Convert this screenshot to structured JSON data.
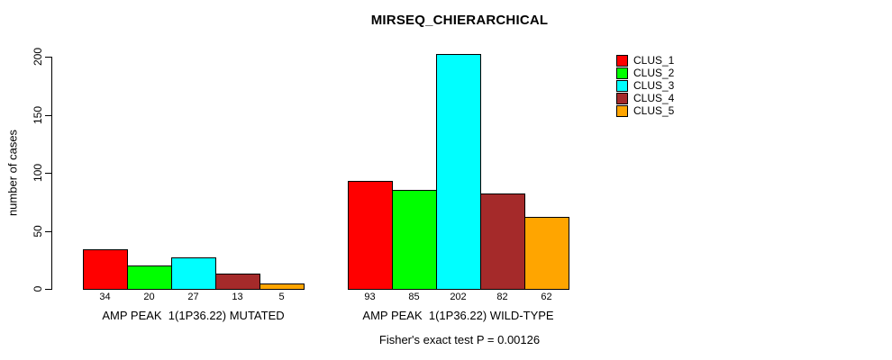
{
  "header": {
    "title": "MIRSEQ_CHIERARCHICAL"
  },
  "chart_data": {
    "type": "bar",
    "title": "MIRSEQ_CHIERARCHICAL",
    "xlabel": "",
    "ylabel": "number of cases",
    "ylim": [
      0,
      210
    ],
    "yticks": [
      0,
      50,
      100,
      150,
      200
    ],
    "grid": false,
    "legend_position": "top-right",
    "bar_borders": "#000000",
    "categories": [
      "AMP PEAK  1(1P36.22) MUTATED",
      "AMP PEAK  1(1P36.22) WILD-TYPE"
    ],
    "series": [
      {
        "name": "CLUS_1",
        "color": "#FF0000",
        "values": [
          34,
          93
        ]
      },
      {
        "name": "CLUS_2",
        "color": "#00FF00",
        "values": [
          20,
          85
        ]
      },
      {
        "name": "CLUS_3",
        "color": "#00FFFF",
        "values": [
          27,
          202
        ]
      },
      {
        "name": "CLUS_4",
        "color": "#A52A2A",
        "values": [
          13,
          82
        ]
      },
      {
        "name": "CLUS_5",
        "color": "#FFA500",
        "values": [
          5,
          62
        ]
      }
    ],
    "bar_value_labels": [
      [
        34,
        20,
        27,
        13,
        5
      ],
      [
        93,
        85,
        202,
        82,
        62
      ]
    ],
    "annotation": "Fisher's exact test P = 0.00126"
  }
}
